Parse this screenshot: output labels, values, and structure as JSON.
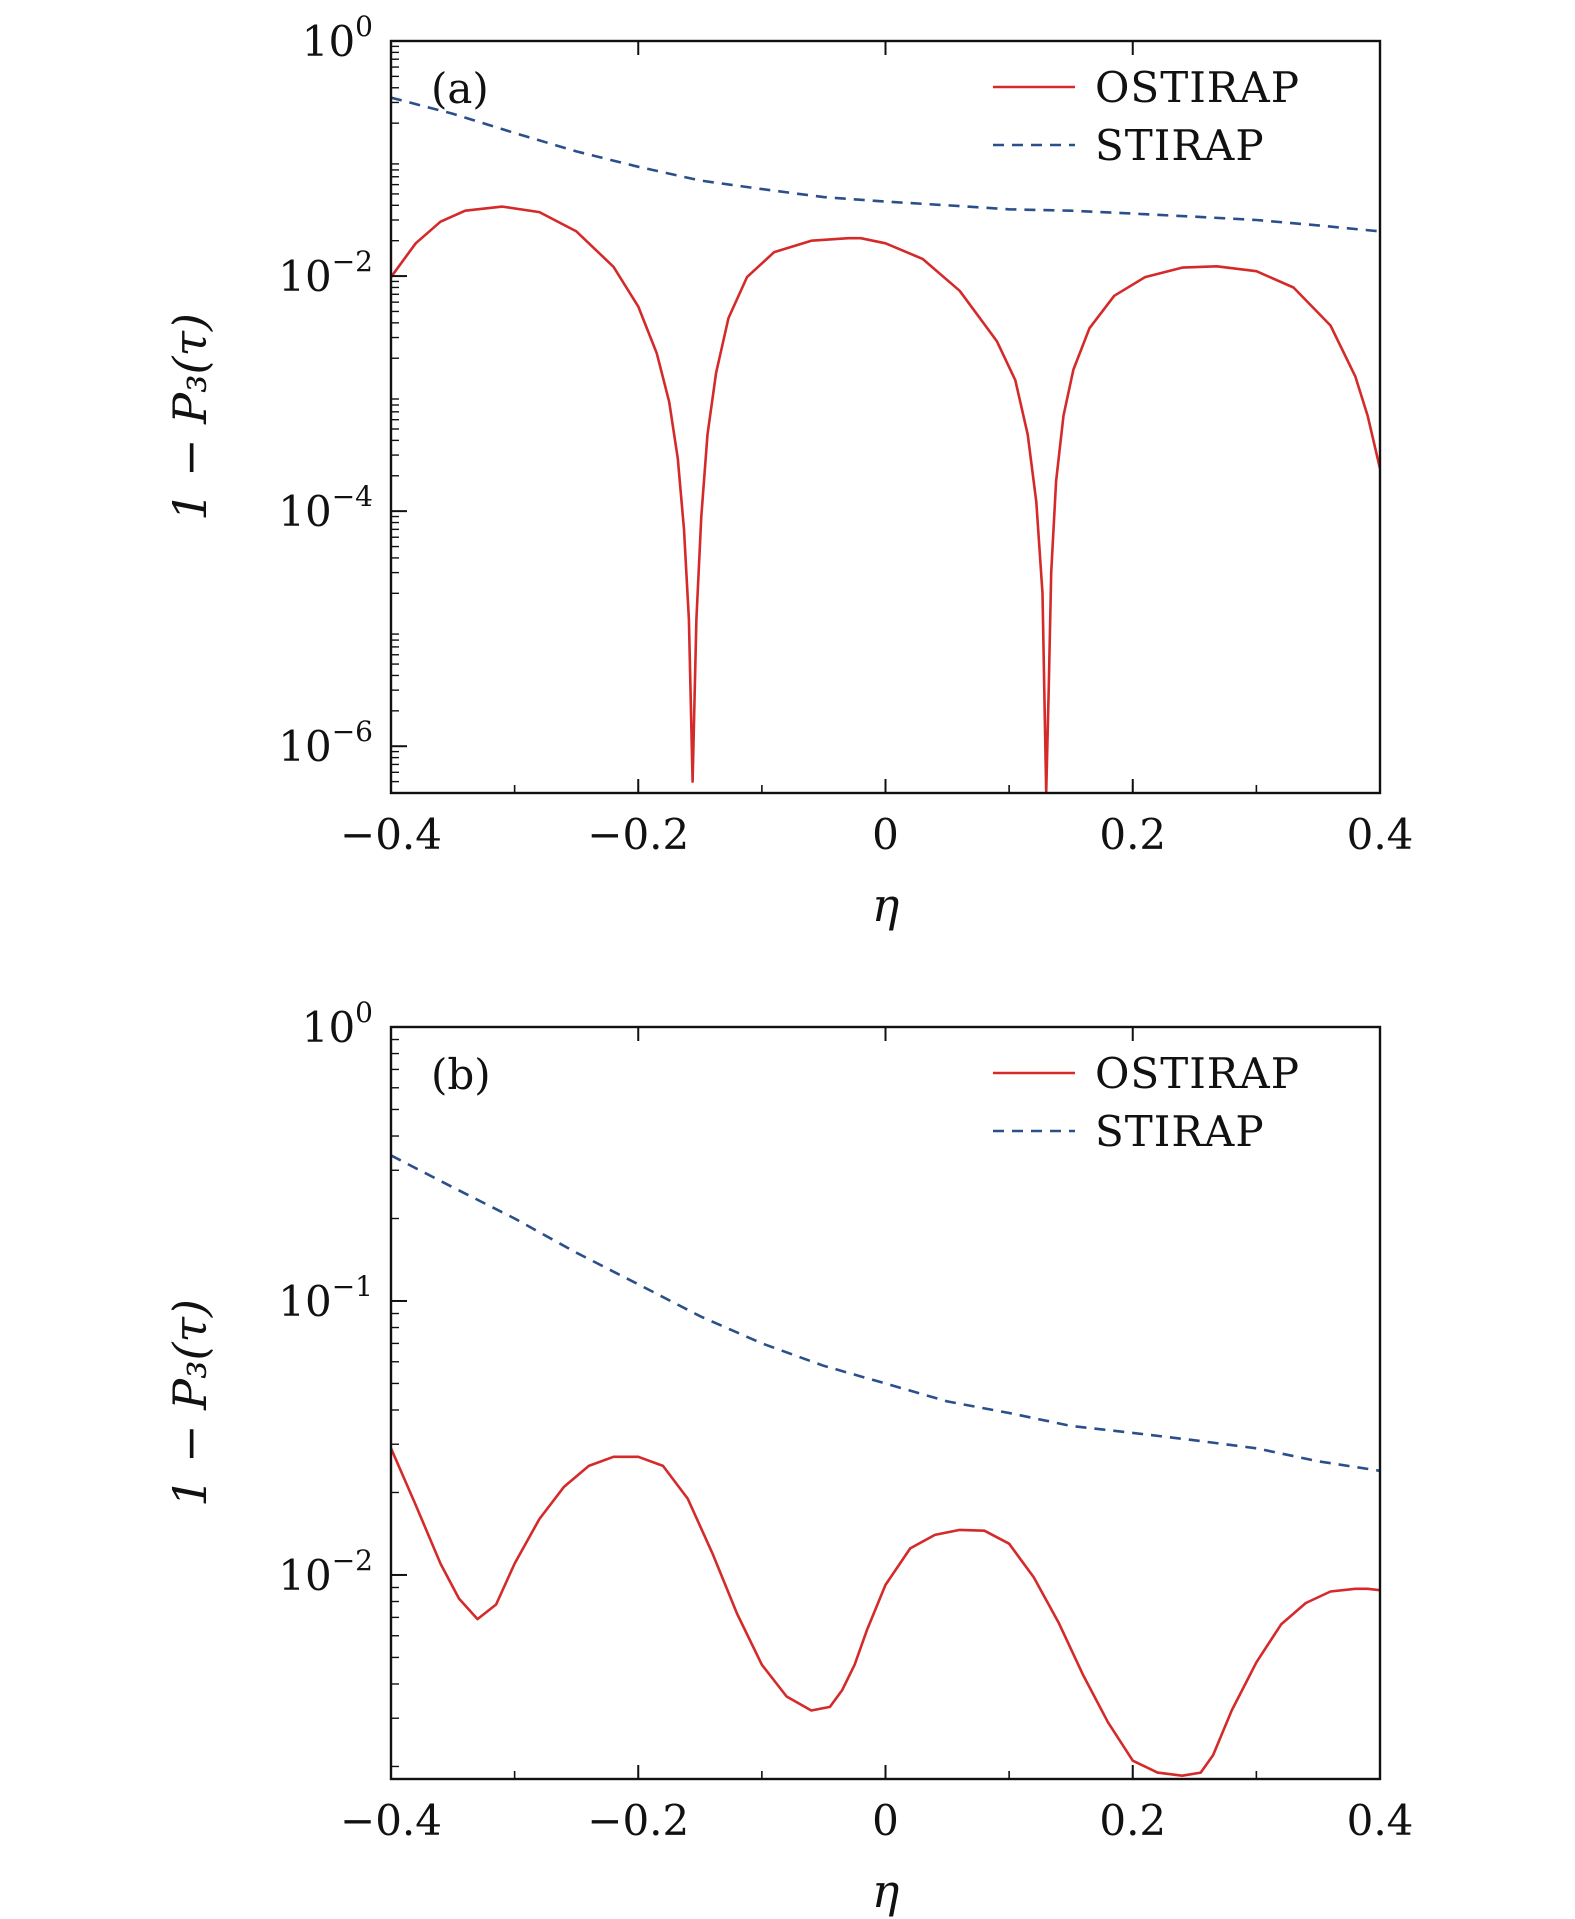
{
  "colors": {
    "ostirap": "#d42a2a",
    "stirap": "#2b4f8a",
    "axis": "#111111"
  },
  "chart_data": [
    {
      "type": "line",
      "panel_label": "(a)",
      "xlabel": "η",
      "ylabel": "1 − P₃(τ)",
      "xlim": [
        -0.4,
        0.4
      ],
      "ylim": [
        4e-07,
        1
      ],
      "yscale": "log",
      "x_ticks": [
        -0.4,
        -0.2,
        0,
        0.2,
        0.4
      ],
      "x_tick_labels": [
        "−0.4",
        "−0.2",
        "0",
        "0.2",
        "0.4"
      ],
      "y_ticks": [
        1e-06,
        0.0001,
        0.01,
        1
      ],
      "y_tick_labels": [
        {
          "base": "10",
          "exp": "−6"
        },
        {
          "base": "10",
          "exp": "−4"
        },
        {
          "base": "10",
          "exp": "−2"
        },
        {
          "base": "10",
          "exp": "0"
        }
      ],
      "grid": false,
      "legend_position": "top-right",
      "series": [
        {
          "name": "OSTIRAP",
          "style": "solid",
          "x": [
            -0.4,
            -0.38,
            -0.36,
            -0.34,
            -0.31,
            -0.28,
            -0.25,
            -0.22,
            -0.2,
            -0.185,
            -0.175,
            -0.168,
            -0.163,
            -0.159,
            -0.156,
            -0.153,
            -0.149,
            -0.144,
            -0.137,
            -0.127,
            -0.112,
            -0.09,
            -0.06,
            -0.03,
            -0.02,
            0.0,
            0.03,
            0.06,
            0.09,
            0.105,
            0.115,
            0.122,
            0.127,
            0.13,
            0.132,
            0.134,
            0.138,
            0.144,
            0.152,
            0.165,
            0.185,
            0.21,
            0.24,
            0.268,
            0.3,
            0.33,
            0.36,
            0.38,
            0.39,
            0.4
          ],
          "y": [
            0.0098,
            0.019,
            0.029,
            0.036,
            0.039,
            0.035,
            0.024,
            0.012,
            0.0055,
            0.0022,
            0.00085,
            0.00028,
            7e-05,
            1.2e-05,
            5e-07,
            1.2e-05,
            9e-05,
            0.00045,
            0.0015,
            0.0044,
            0.0098,
            0.016,
            0.02,
            0.021,
            0.021,
            0.019,
            0.014,
            0.0075,
            0.0028,
            0.0013,
            0.00045,
            0.00012,
            2e-05,
            4e-07,
            3e-06,
            3e-05,
            0.00018,
            0.00065,
            0.0016,
            0.0036,
            0.0068,
            0.0098,
            0.0118,
            0.0121,
            0.011,
            0.008,
            0.0038,
            0.0014,
            0.00065,
            0.00023
          ]
        },
        {
          "name": "STIRAP",
          "style": "dashed",
          "x": [
            -0.4,
            -0.35,
            -0.3,
            -0.25,
            -0.2,
            -0.15,
            -0.1,
            -0.05,
            0.0,
            0.05,
            0.1,
            0.15,
            0.2,
            0.25,
            0.3,
            0.35,
            0.4
          ],
          "y": [
            0.33,
            0.24,
            0.165,
            0.115,
            0.085,
            0.065,
            0.055,
            0.047,
            0.043,
            0.04,
            0.037,
            0.036,
            0.034,
            0.032,
            0.03,
            0.027,
            0.024
          ]
        }
      ]
    },
    {
      "type": "line",
      "panel_label": "(b)",
      "xlabel": "η",
      "ylabel": "1 − P₃(τ)",
      "xlim": [
        -0.4,
        0.4
      ],
      "ylim": [
        0.0018,
        1
      ],
      "yscale": "log",
      "x_ticks": [
        -0.4,
        -0.2,
        0,
        0.2,
        0.4
      ],
      "x_tick_labels": [
        "−0.4",
        "−0.2",
        "0",
        "0.2",
        "0.4"
      ],
      "y_ticks": [
        0.01,
        0.1,
        1
      ],
      "y_tick_labels": [
        {
          "base": "10",
          "exp": "−2"
        },
        {
          "base": "10",
          "exp": "−1"
        },
        {
          "base": "10",
          "exp": "0"
        }
      ],
      "grid": false,
      "legend_position": "top-right",
      "series": [
        {
          "name": "OSTIRAP",
          "style": "solid",
          "x": [
            -0.4,
            -0.38,
            -0.36,
            -0.345,
            -0.33,
            -0.315,
            -0.3,
            -0.28,
            -0.26,
            -0.24,
            -0.22,
            -0.2,
            -0.18,
            -0.16,
            -0.14,
            -0.12,
            -0.1,
            -0.08,
            -0.06,
            -0.045,
            -0.035,
            -0.025,
            -0.015,
            0.0,
            0.02,
            0.04,
            0.06,
            0.08,
            0.1,
            0.12,
            0.14,
            0.16,
            0.18,
            0.2,
            0.22,
            0.24,
            0.255,
            0.265,
            0.28,
            0.3,
            0.32,
            0.34,
            0.36,
            0.38,
            0.39,
            0.4
          ],
          "y": [
            0.029,
            0.018,
            0.011,
            0.0082,
            0.0069,
            0.0078,
            0.011,
            0.016,
            0.021,
            0.025,
            0.027,
            0.027,
            0.025,
            0.019,
            0.012,
            0.0072,
            0.0047,
            0.0036,
            0.0032,
            0.0033,
            0.0038,
            0.0047,
            0.0063,
            0.0092,
            0.0125,
            0.014,
            0.0146,
            0.0145,
            0.013,
            0.0098,
            0.0067,
            0.0043,
            0.0029,
            0.0021,
            0.0019,
            0.00185,
            0.0019,
            0.0022,
            0.0032,
            0.0048,
            0.0066,
            0.0079,
            0.0087,
            0.0089,
            0.0089,
            0.0088
          ]
        },
        {
          "name": "STIRAP",
          "style": "dashed",
          "x": [
            -0.4,
            -0.35,
            -0.3,
            -0.25,
            -0.2,
            -0.15,
            -0.1,
            -0.05,
            0.0,
            0.05,
            0.1,
            0.15,
            0.2,
            0.25,
            0.3,
            0.35,
            0.4
          ],
          "y": [
            0.34,
            0.26,
            0.2,
            0.15,
            0.115,
            0.088,
            0.07,
            0.058,
            0.05,
            0.043,
            0.039,
            0.035,
            0.033,
            0.031,
            0.029,
            0.026,
            0.024
          ]
        }
      ]
    }
  ]
}
